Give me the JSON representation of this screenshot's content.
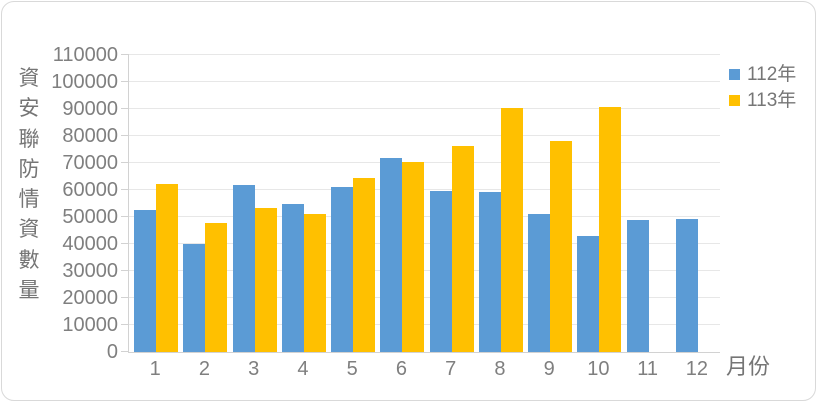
{
  "chart_data": {
    "type": "bar",
    "title": "",
    "categories": [
      "1",
      "2",
      "3",
      "4",
      "5",
      "6",
      "7",
      "8",
      "9",
      "10",
      "11",
      "12"
    ],
    "series": [
      {
        "name": "112年",
        "color": "#5B9BD5",
        "values": [
          52700,
          40000,
          62000,
          54900,
          61000,
          71800,
          59700,
          59300,
          51000,
          43000,
          49000,
          49400
        ]
      },
      {
        "name": "113年",
        "color": "#FFC000",
        "values": [
          62300,
          47800,
          53400,
          51200,
          64400,
          70300,
          76200,
          90200,
          78200,
          90700,
          null,
          null
        ]
      }
    ],
    "xlabel": "月份",
    "ylabel": "資安聯防情資數量",
    "ylim": [
      0,
      110000
    ],
    "ytick_step": 10000,
    "grid": "horizontal",
    "legend_position": "top-right"
  },
  "colors": {
    "axis_text": "#7f7f7f",
    "title_text": "#757575",
    "gridline": "#e7e7e7",
    "axis_line": "#d2d2d2",
    "frame_border": "#d9d9d9",
    "background": "#ffffff"
  }
}
